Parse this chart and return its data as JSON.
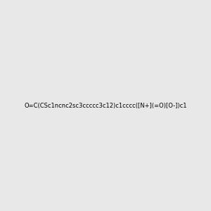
{
  "smiles": "O=C(CSc1ncnc2sc3ccccc3c12)c1cccc([N+](=O)[O-])c1",
  "image_size": 300,
  "background_color": "#e8e8e8",
  "atom_colors": {
    "N": "#0000ff",
    "O": "#ff0000",
    "S": "#cccc00"
  },
  "title": ""
}
